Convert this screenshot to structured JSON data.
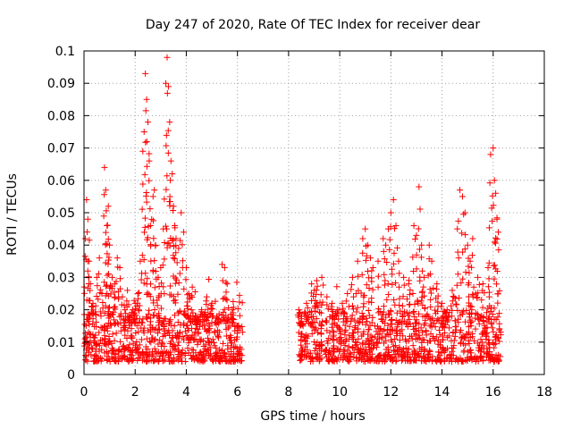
{
  "chart_data": {
    "type": "scatter",
    "title": "Day 247 of 2020, Rate Of TEC Index for receiver dear",
    "xlabel": "GPS time / hours",
    "ylabel": "ROTI / TECUs",
    "xlim": [
      0,
      18
    ],
    "ylim": [
      0,
      0.1
    ],
    "xticks": [
      0,
      2,
      4,
      6,
      8,
      10,
      12,
      14,
      16,
      18
    ],
    "xtick_labels": [
      "0",
      "2",
      "4",
      "6",
      "8",
      "10",
      "12",
      "14",
      "16",
      "18"
    ],
    "yticks": [
      0,
      0.01,
      0.02,
      0.03,
      0.04,
      0.05,
      0.06,
      0.07,
      0.08,
      0.09,
      0.1
    ],
    "ytick_labels": [
      "0",
      "0.01",
      "0.02",
      "0.03",
      "0.04",
      "0.05",
      "0.06",
      "0.07",
      "0.08",
      "0.09",
      "0.1"
    ],
    "grid": true,
    "marker": "+",
    "series_color": "#ff0000",
    "points": [
      [
        0.05,
        0.042
      ],
      [
        0.1,
        0.054
      ],
      [
        0.15,
        0.048
      ],
      [
        0.2,
        0.035
      ],
      [
        0.25,
        0.028
      ],
      [
        0.35,
        0.022
      ],
      [
        0.5,
        0.03
      ],
      [
        0.6,
        0.036
      ],
      [
        0.7,
        0.025
      ],
      [
        0.8,
        0.064
      ],
      [
        0.85,
        0.057
      ],
      [
        0.9,
        0.046
      ],
      [
        0.95,
        0.052
      ],
      [
        1.0,
        0.04
      ],
      [
        1.1,
        0.03
      ],
      [
        1.2,
        0.028
      ],
      [
        1.3,
        0.036
      ],
      [
        1.4,
        0.033
      ],
      [
        1.5,
        0.024
      ],
      [
        1.6,
        0.02
      ],
      [
        1.7,
        0.026
      ],
      [
        1.8,
        0.018
      ],
      [
        1.9,
        0.02
      ],
      [
        2.0,
        0.022
      ],
      [
        2.1,
        0.025
      ],
      [
        2.2,
        0.035
      ],
      [
        2.3,
        0.069
      ],
      [
        2.35,
        0.075
      ],
      [
        2.4,
        0.093
      ],
      [
        2.45,
        0.085
      ],
      [
        2.5,
        0.078
      ],
      [
        2.55,
        0.066
      ],
      [
        2.6,
        0.046
      ],
      [
        2.7,
        0.055
      ],
      [
        2.75,
        0.057
      ],
      [
        2.8,
        0.04
      ],
      [
        2.9,
        0.03
      ],
      [
        3.0,
        0.033
      ],
      [
        3.1,
        0.045
      ],
      [
        3.2,
        0.09
      ],
      [
        3.25,
        0.098
      ],
      [
        3.3,
        0.089
      ],
      [
        3.35,
        0.078
      ],
      [
        3.4,
        0.066
      ],
      [
        3.45,
        0.062
      ],
      [
        3.5,
        0.052
      ],
      [
        3.55,
        0.046
      ],
      [
        3.6,
        0.042
      ],
      [
        3.7,
        0.039
      ],
      [
        3.8,
        0.05
      ],
      [
        3.9,
        0.044
      ],
      [
        4.0,
        0.033
      ],
      [
        4.1,
        0.025
      ],
      [
        4.2,
        0.02
      ],
      [
        4.4,
        0.018
      ],
      [
        4.6,
        0.02
      ],
      [
        4.8,
        0.024
      ],
      [
        5.0,
        0.022
      ],
      [
        5.2,
        0.018
      ],
      [
        5.4,
        0.034
      ],
      [
        5.5,
        0.033
      ],
      [
        5.6,
        0.028
      ],
      [
        5.8,
        0.02
      ],
      [
        6.0,
        0.015
      ],
      [
        8.4,
        0.02
      ],
      [
        8.5,
        0.016
      ],
      [
        8.7,
        0.022
      ],
      [
        8.9,
        0.028
      ],
      [
        9.0,
        0.026
      ],
      [
        9.1,
        0.029
      ],
      [
        9.3,
        0.03
      ],
      [
        9.5,
        0.024
      ],
      [
        9.7,
        0.022
      ],
      [
        9.9,
        0.02
      ],
      [
        10.1,
        0.022
      ],
      [
        10.3,
        0.025
      ],
      [
        10.5,
        0.03
      ],
      [
        10.7,
        0.035
      ],
      [
        10.9,
        0.042
      ],
      [
        11.0,
        0.045
      ],
      [
        11.1,
        0.04
      ],
      [
        11.2,
        0.036
      ],
      [
        11.3,
        0.033
      ],
      [
        11.5,
        0.035
      ],
      [
        11.7,
        0.042
      ],
      [
        11.8,
        0.04
      ],
      [
        11.9,
        0.045
      ],
      [
        12.0,
        0.05
      ],
      [
        12.1,
        0.054
      ],
      [
        12.2,
        0.046
      ],
      [
        12.3,
        0.035
      ],
      [
        12.5,
        0.03
      ],
      [
        12.7,
        0.028
      ],
      [
        12.9,
        0.046
      ],
      [
        13.0,
        0.043
      ],
      [
        13.1,
        0.058
      ],
      [
        13.2,
        0.04
      ],
      [
        13.3,
        0.03
      ],
      [
        13.5,
        0.04
      ],
      [
        13.6,
        0.035
      ],
      [
        13.8,
        0.028
      ],
      [
        14.0,
        0.022
      ],
      [
        14.2,
        0.02
      ],
      [
        14.4,
        0.026
      ],
      [
        14.6,
        0.045
      ],
      [
        14.7,
        0.057
      ],
      [
        14.8,
        0.055
      ],
      [
        14.9,
        0.05
      ],
      [
        15.0,
        0.04
      ],
      [
        15.1,
        0.035
      ],
      [
        15.2,
        0.042
      ],
      [
        15.4,
        0.03
      ],
      [
        15.6,
        0.028
      ],
      [
        15.8,
        0.033
      ],
      [
        15.9,
        0.068
      ],
      [
        16.0,
        0.07
      ],
      [
        16.05,
        0.06
      ],
      [
        16.1,
        0.056
      ],
      [
        16.15,
        0.048
      ],
      [
        16.2,
        0.044
      ]
    ],
    "dense_bands": [
      {
        "x_start": 0.0,
        "x_end": 6.2,
        "y_low": 0.004,
        "y_high": 0.019
      },
      {
        "x_start": 8.4,
        "x_end": 16.3,
        "y_low": 0.004,
        "y_high": 0.02
      }
    ],
    "data_gap": [
      6.2,
      8.4
    ]
  }
}
